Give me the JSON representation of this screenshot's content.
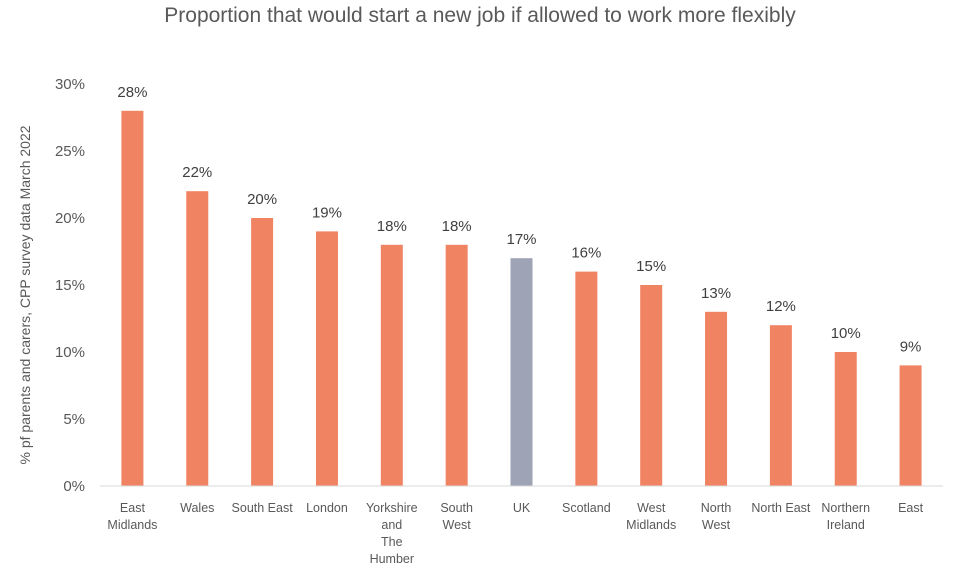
{
  "chart_data": {
    "type": "bar",
    "title": "Proportion that would start a new job if allowed to work more flexibly",
    "ylabel": "% pf parents and carers, CPP survey data March 2022",
    "xlabel": "",
    "ylim": [
      0,
      30
    ],
    "yticks": [
      "0%",
      "5%",
      "10%",
      "15%",
      "20%",
      "25%",
      "30%"
    ],
    "grid": false,
    "legend": "none",
    "categories": [
      [
        "East",
        "Midlands"
      ],
      [
        "Wales"
      ],
      [
        "South East"
      ],
      [
        "London"
      ],
      [
        "Yorkshire",
        "and",
        "The",
        "Humber"
      ],
      [
        "South",
        "West"
      ],
      [
        "UK"
      ],
      [
        "Scotland"
      ],
      [
        "West",
        "Midlands"
      ],
      [
        "North",
        "West"
      ],
      [
        "North East"
      ],
      [
        "Northern",
        "Ireland"
      ],
      [
        "East"
      ]
    ],
    "values": [
      28,
      22,
      20,
      19,
      18,
      18,
      17,
      16,
      15,
      13,
      12,
      10,
      9
    ],
    "data_labels": [
      "28%",
      "22%",
      "20%",
      "19%",
      "18%",
      "18%",
      "17%",
      "16%",
      "15%",
      "13%",
      "12%",
      "10%",
      "9%"
    ],
    "highlight_index": 6,
    "colors": {
      "bar": "#F08362",
      "highlight": "#9EA3B5",
      "axis": "#D9D9D9"
    }
  }
}
